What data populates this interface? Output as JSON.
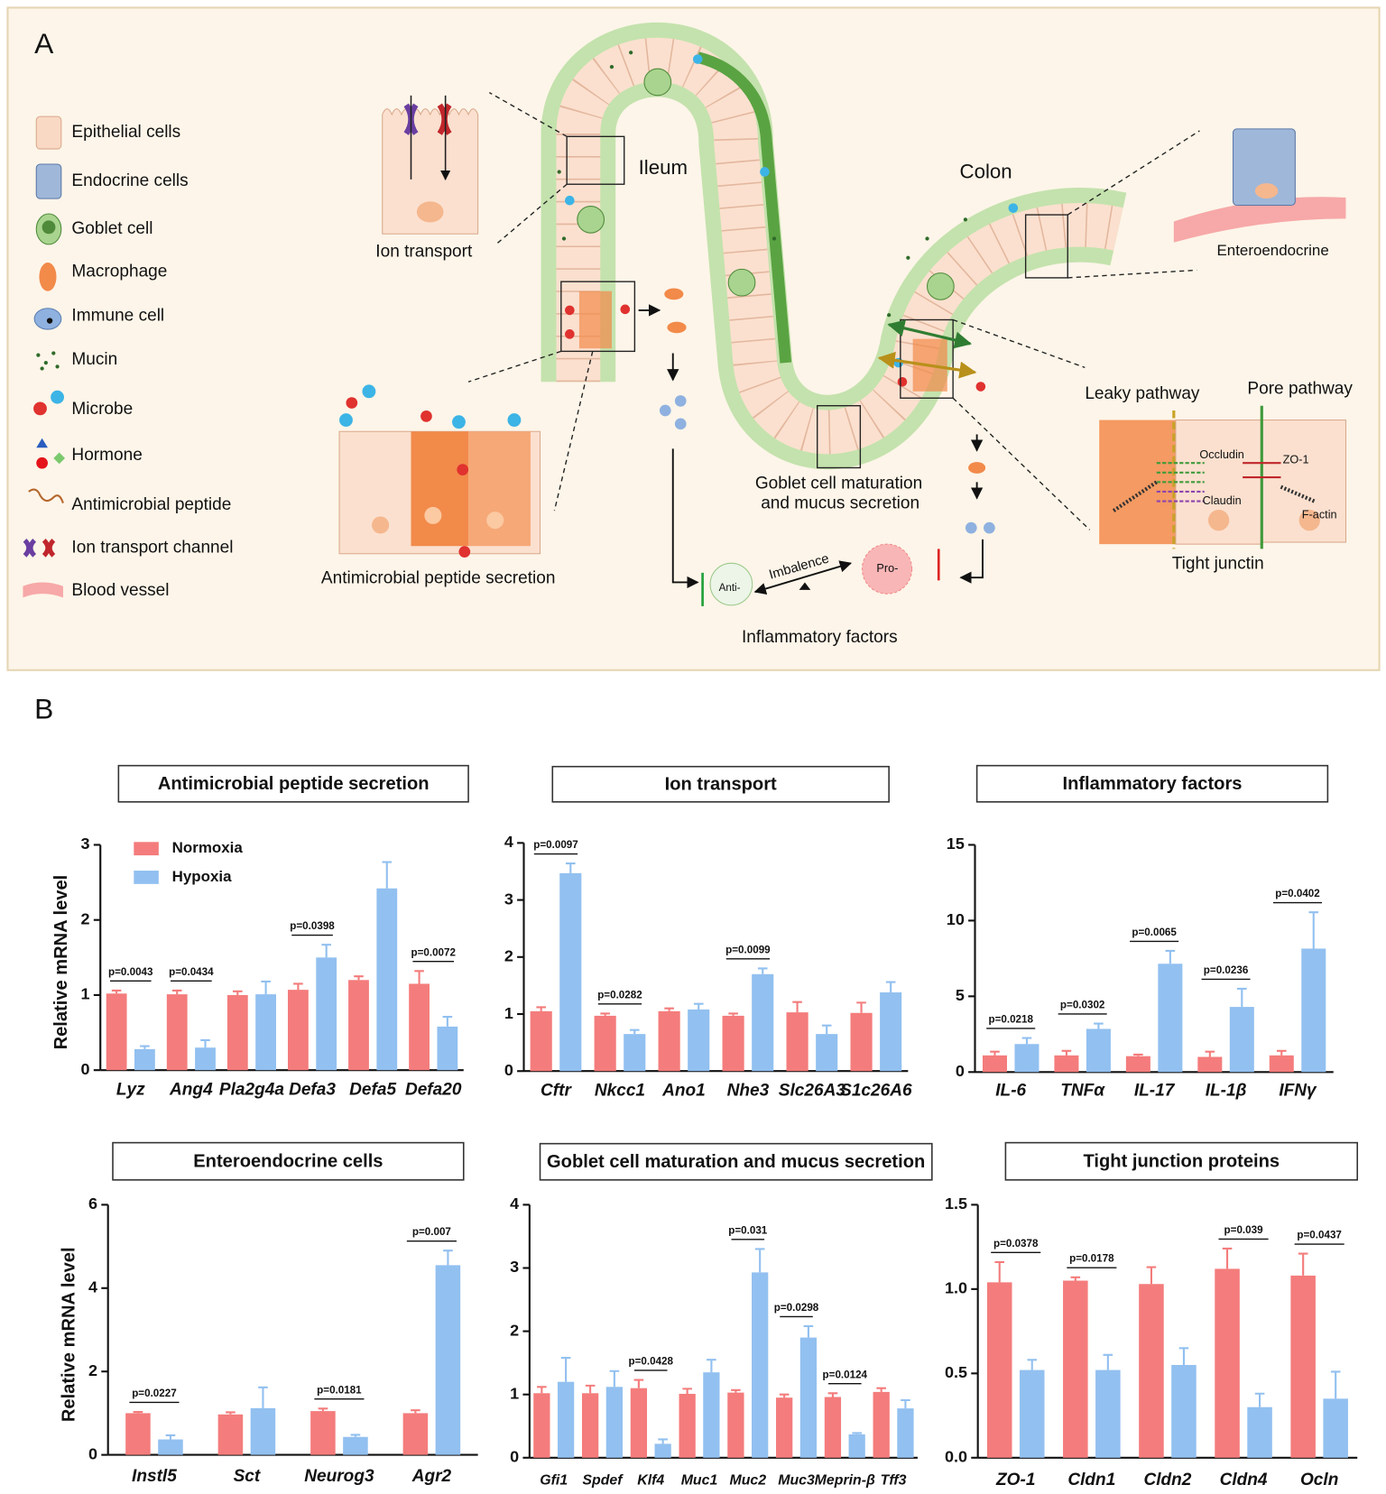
{
  "panel_a": {
    "label": "A",
    "legend": [
      "Epithelial cells",
      "Endocrine cells",
      "Goblet cell",
      "Macrophage",
      "Immune cell",
      "Mucin",
      "Microbe",
      "Hormone",
      "Antimicrobial peptide",
      "Ion transport channel",
      "Blood vessel"
    ],
    "ileum": "Ileum",
    "colon": "Colon",
    "ion_transport": "Ion transport",
    "antimicrobial": "Antimicrobial peptide secretion",
    "goblet": [
      "Goblet cell  maturation",
      "and mucus secretion"
    ],
    "inflammatory": "Inflammatory factors",
    "imbalance": "Imbalence",
    "anti": "Anti-",
    "pro": "Pro-",
    "enteroendocrine": "Enteroendocrine",
    "leaky": "Leaky pathway",
    "pore": "Pore pathway",
    "occludin": "Occludin",
    "zo1": "ZO-1",
    "claudin": "Claudin",
    "factin": "F-actin",
    "tight": "Tight junctin"
  },
  "panel_b": {
    "label": "B"
  },
  "chart_data": [
    {
      "type": "bar",
      "title": "Antimicrobial peptide secretion",
      "ylabel": "Relative mRNA level",
      "legend": "upper left",
      "categories": [
        "Lyz",
        "Ang4",
        "Pla2g4a",
        "Defa3",
        "Defa5",
        "Defa20"
      ],
      "series": [
        {
          "name": "Normoxia",
          "color": "#f47c7c",
          "values": [
            1.02,
            1.01,
            1.0,
            1.07,
            1.2,
            1.15
          ],
          "errors": [
            0.04,
            0.05,
            0.05,
            0.08,
            0.05,
            0.17
          ]
        },
        {
          "name": "Hypoxia",
          "color": "#92c0f0",
          "values": [
            0.28,
            0.3,
            1.01,
            1.5,
            2.42,
            0.58
          ],
          "errors": [
            0.04,
            0.1,
            0.17,
            0.17,
            0.35,
            0.13
          ]
        }
      ],
      "annotations": [
        "p=0.0043",
        "p=0.0434",
        null,
        "p=0.0398",
        null,
        "p=0.0072"
      ],
      "ylim": [
        0,
        3
      ],
      "yticks": [
        0,
        1,
        2,
        3
      ]
    },
    {
      "type": "bar",
      "title": "Ion transport",
      "categories": [
        "Cftr",
        "Nkcc1",
        "Ano1",
        "Nhe3",
        "Slc26A3",
        "S1c26A6"
      ],
      "series": [
        {
          "color": "#f47c7c",
          "values": [
            1.05,
            0.97,
            1.05,
            0.97,
            1.03,
            1.02
          ],
          "errors": [
            0.07,
            0.04,
            0.05,
            0.04,
            0.18,
            0.18
          ]
        },
        {
          "color": "#92c0f0",
          "values": [
            3.47,
            0.65,
            1.08,
            1.7,
            0.65,
            1.38
          ],
          "errors": [
            0.17,
            0.07,
            0.1,
            0.1,
            0.15,
            0.18
          ]
        }
      ],
      "annotations": [
        "p=0.0097",
        "p=0.0282",
        null,
        "p=0.0099",
        null,
        null
      ],
      "ylim": [
        0,
        4
      ],
      "yticks": [
        0,
        1,
        2,
        3,
        4
      ]
    },
    {
      "type": "bar",
      "title": "Inflammatory factors",
      "categories": [
        "IL-6",
        "TNFα",
        "IL-17",
        "IL-1β",
        "IFNγ"
      ],
      "series": [
        {
          "color": "#f47c7c",
          "values": [
            1.1,
            1.1,
            1.05,
            1.0,
            1.1
          ],
          "errors": [
            0.25,
            0.3,
            0.1,
            0.35,
            0.3
          ]
        },
        {
          "color": "#92c0f0",
          "values": [
            1.85,
            2.85,
            7.15,
            4.3,
            8.15
          ],
          "errors": [
            0.4,
            0.35,
            0.85,
            1.2,
            2.4
          ]
        }
      ],
      "annotations": [
        "p=0.0218",
        "p=0.0302",
        "p=0.0065",
        "p=0.0236",
        "p=0.0402"
      ],
      "ylim": [
        0,
        15
      ],
      "yticks": [
        0,
        5,
        10,
        15
      ]
    },
    {
      "type": "bar",
      "title": "Enteroendocrine cells",
      "ylabel": "Relative mRNA level",
      "categories": [
        "Instl5",
        "Sct",
        "Neurog3",
        "Agr2"
      ],
      "series": [
        {
          "color": "#f47c7c",
          "values": [
            1.0,
            0.97,
            1.05,
            1.0
          ],
          "errors": [
            0.03,
            0.05,
            0.06,
            0.07
          ]
        },
        {
          "color": "#92c0f0",
          "values": [
            0.37,
            1.12,
            0.43,
            4.55
          ],
          "errors": [
            0.1,
            0.5,
            0.05,
            0.35
          ]
        }
      ],
      "annotations": [
        "p=0.0227",
        null,
        "p=0.0181",
        "p=0.007"
      ],
      "ylim": [
        0,
        6
      ],
      "yticks": [
        0,
        2,
        4,
        6
      ]
    },
    {
      "type": "bar",
      "title": "Goblet cell maturation and mucus secretion",
      "categories": [
        "Gfi1",
        "Spdef",
        "Klf4",
        "Muc1",
        "Muc2",
        "Muc3",
        "Meprin-β",
        "Tff3"
      ],
      "series": [
        {
          "color": "#f47c7c",
          "values": [
            1.02,
            1.02,
            1.1,
            1.01,
            1.03,
            0.95,
            0.96,
            1.04
          ],
          "errors": [
            0.1,
            0.12,
            0.13,
            0.08,
            0.04,
            0.05,
            0.06,
            0.06
          ]
        },
        {
          "color": "#92c0f0",
          "values": [
            1.2,
            1.12,
            0.22,
            1.35,
            2.93,
            1.9,
            0.37,
            0.78
          ],
          "errors": [
            0.38,
            0.25,
            0.07,
            0.2,
            0.37,
            0.18,
            0.02,
            0.13
          ]
        }
      ],
      "annotations": [
        null,
        null,
        "p=0.0428",
        null,
        "p=0.031",
        "p=0.0298",
        "p=0.0124",
        null
      ],
      "ylim": [
        0,
        4
      ],
      "yticks": [
        0,
        1,
        2,
        3,
        4
      ]
    },
    {
      "type": "bar",
      "title": "Tight junction proteins",
      "categories": [
        "ZO-1",
        "Cldn1",
        "Cldn2",
        "Cldn4",
        "Ocln"
      ],
      "series": [
        {
          "color": "#f47c7c",
          "values": [
            1.04,
            1.05,
            1.03,
            1.12,
            1.08
          ],
          "errors": [
            0.12,
            0.02,
            0.1,
            0.12,
            0.13
          ]
        },
        {
          "color": "#92c0f0",
          "values": [
            0.52,
            0.52,
            0.55,
            0.3,
            0.35
          ],
          "errors": [
            0.06,
            0.09,
            0.1,
            0.08,
            0.16
          ]
        }
      ],
      "annotations": [
        "p=0.0378",
        "p=0.0178",
        null,
        "p=0.039",
        "p=0.0437"
      ],
      "ylim": [
        0,
        1.5
      ],
      "yticks": [
        {
          "value": 0,
          "label": "0.0"
        },
        0.5,
        {
          "value": 1,
          "label": "1.0"
        },
        1.5
      ]
    }
  ]
}
